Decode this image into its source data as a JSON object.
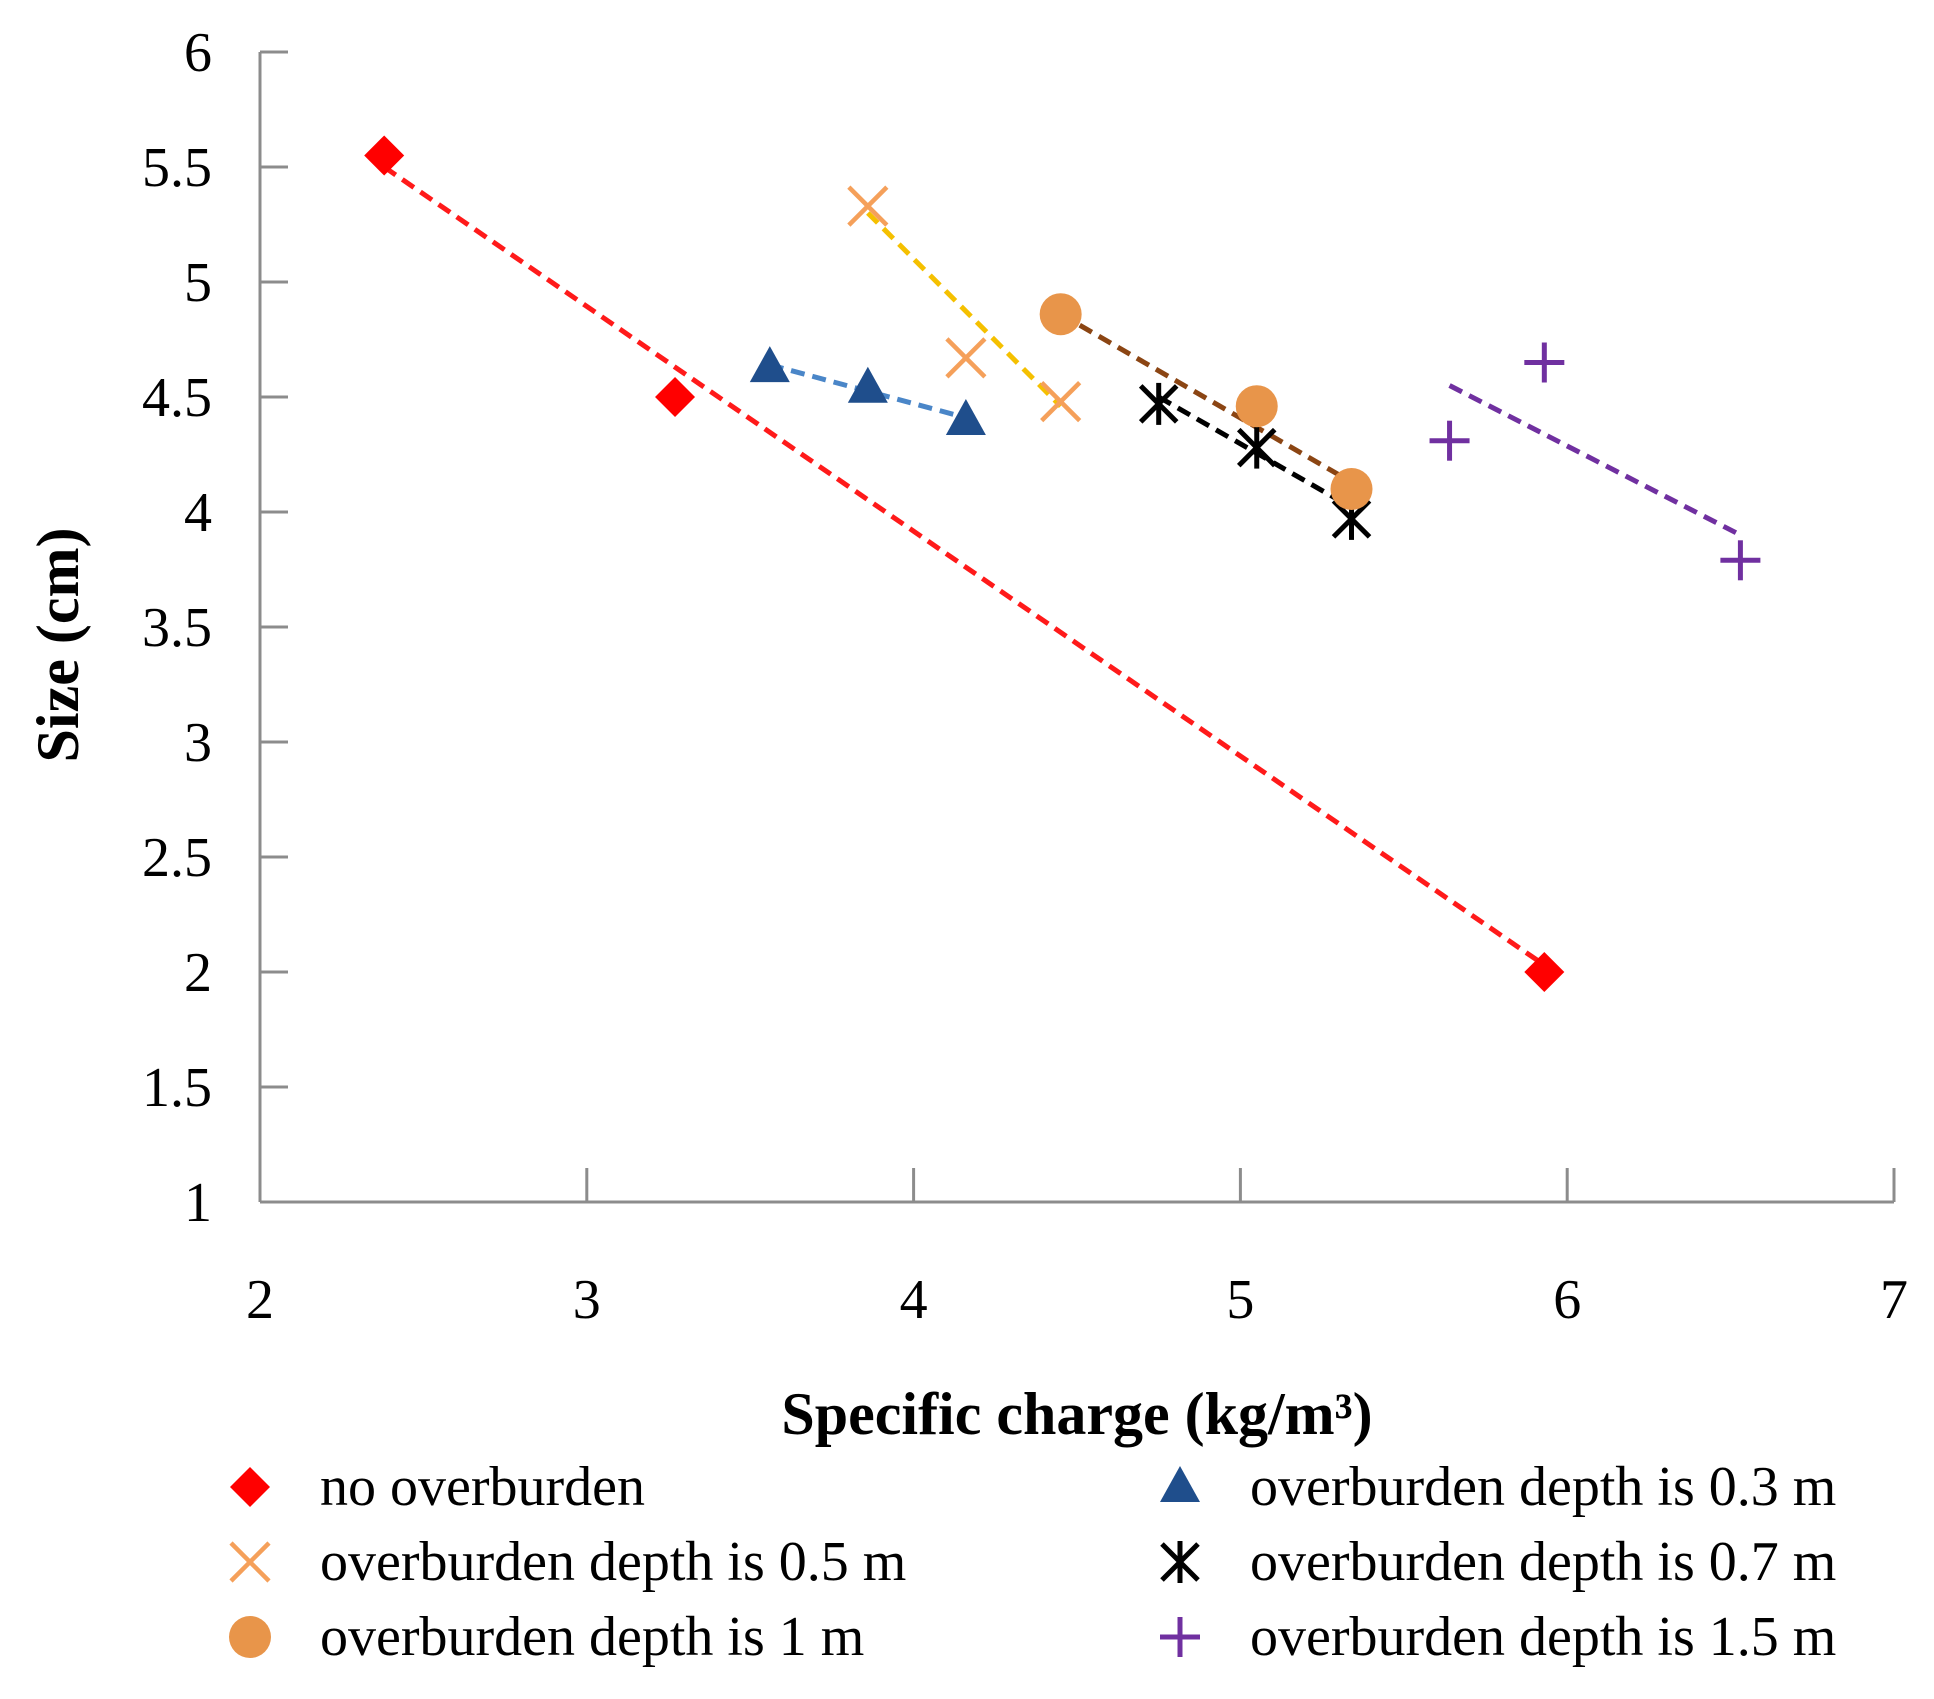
{
  "chart_data": {
    "type": "scatter",
    "title": "",
    "xlabel": "Specific charge (kg/m³)",
    "ylabel": "Size (cm)",
    "xlim": [
      2,
      7
    ],
    "ylim": [
      1,
      6
    ],
    "x_ticks": [
      2,
      3,
      4,
      5,
      6,
      7
    ],
    "y_ticks": [
      1,
      1.5,
      2,
      2.5,
      3,
      3.5,
      4,
      4.5,
      5,
      5.5,
      6
    ],
    "grid": false,
    "legend_position": "bottom",
    "series": [
      {
        "name": "no overburden",
        "marker": "diamond",
        "color": "#ff0000",
        "trend_color": "#ff1a1a",
        "x": [
          2.38,
          3.27,
          5.93
        ],
        "y": [
          5.55,
          4.5,
          2.0
        ],
        "trend": {
          "x": [
            2.38,
            5.93
          ],
          "y": [
            5.5,
            2.03
          ]
        }
      },
      {
        "name": "overburden depth is 0.3 m",
        "marker": "triangle",
        "color": "#1f4e8c",
        "trend_color": "#4a86c8",
        "x": [
          3.56,
          3.86,
          4.16
        ],
        "y": [
          4.63,
          4.54,
          4.4
        ],
        "trend": {
          "x": [
            3.56,
            4.16
          ],
          "y": [
            4.64,
            4.41
          ]
        }
      },
      {
        "name": "overburden depth is 0.5 m",
        "marker": "x",
        "color": "#f5a05a",
        "trend_color": "#f5c000",
        "x": [
          3.86,
          4.16,
          4.45
        ],
        "y": [
          5.33,
          4.67,
          4.48
        ],
        "trend": {
          "x": [
            3.86,
            4.45
          ],
          "y": [
            5.3,
            4.46
          ]
        }
      },
      {
        "name": "overburden depth is 0.7 m",
        "marker": "asterisk",
        "color": "#000000",
        "trend_color": "#000000",
        "x": [
          4.75,
          5.05,
          5.34
        ],
        "y": [
          4.47,
          4.28,
          3.97
        ],
        "trend": {
          "x": [
            4.75,
            5.34
          ],
          "y": [
            4.5,
            4.02
          ]
        }
      },
      {
        "name": "overburden depth is 1 m",
        "marker": "circle",
        "color": "#e8954a",
        "trend_color": "#8b4513",
        "x": [
          4.45,
          5.05,
          5.34
        ],
        "y": [
          4.86,
          4.46,
          4.1
        ],
        "trend": {
          "x": [
            4.45,
            5.34
          ],
          "y": [
            4.86,
            4.13
          ]
        }
      },
      {
        "name": "overburden depth is 1.5 m",
        "marker": "plus",
        "color": "#7030a0",
        "trend_color": "#7030a0",
        "x": [
          5.64,
          5.93,
          6.53
        ],
        "y": [
          4.31,
          4.65,
          3.79
        ],
        "trend": {
          "x": [
            5.64,
            6.53
          ],
          "y": [
            4.55,
            3.9
          ]
        }
      }
    ]
  }
}
